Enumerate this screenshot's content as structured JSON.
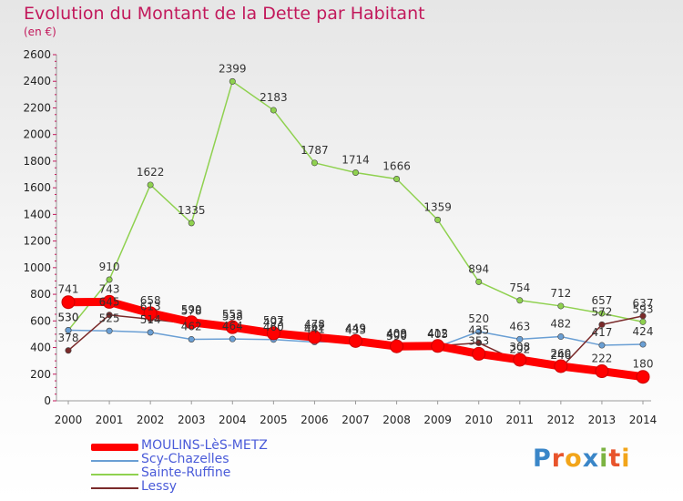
{
  "header": {
    "title": "Evolution du Montant de la Dette par Habitant",
    "unit": "(en €)"
  },
  "logo": {
    "letters": [
      "P",
      "r",
      "o",
      "x",
      "i",
      "t",
      "i"
    ],
    "colors": [
      "#3a86c8",
      "#e8542c",
      "#f2a51a",
      "#3a86c8",
      "#7cb342",
      "#e8542c",
      "#f2a51a"
    ]
  },
  "chart_data": {
    "type": "line",
    "title": "Evolution du Montant de la Dette par Habitant",
    "ylabel": "(en €)",
    "xlabel": "",
    "x": [
      "2000",
      "2001",
      "2002",
      "2003",
      "2004",
      "2005",
      "2006",
      "2007",
      "2008",
      "2009",
      "2010",
      "2011",
      "2012",
      "2013",
      "2014"
    ],
    "ylim": [
      0,
      2600
    ],
    "yticks": [
      0,
      200,
      400,
      600,
      800,
      1000,
      1200,
      1400,
      1600,
      1800,
      2000,
      2200,
      2400,
      2600
    ],
    "grid": false,
    "legend": "bottom-left",
    "series": [
      {
        "name": "MOULINS-LèS-METZ",
        "color": "#ff0000",
        "values": [
          741,
          743,
          658,
          590,
          553,
          507,
          478,
          449,
          409,
          412,
          353,
          308,
          260,
          222,
          180
        ]
      },
      {
        "name": "Scy-Chazelles",
        "color": "#6a9fd4",
        "values": [
          530,
          525,
          514,
          462,
          464,
          460,
          441,
          449,
          400,
          405,
          520,
          463,
          482,
          417,
          424
        ]
      },
      {
        "name": "Sainte-Ruffine",
        "color": "#8fd14f",
        "values": [
          530,
          910,
          1622,
          1335,
          2399,
          2183,
          1787,
          1714,
          1666,
          1359,
          894,
          754,
          712,
          657,
          593
        ]
      },
      {
        "name": "Lessy",
        "color": "#7a2a2a",
        "values": [
          378,
          645,
          613,
          578,
          538,
          493,
          462,
          433,
          390,
          412,
          435,
          292,
          246,
          572,
          637
        ]
      }
    ]
  }
}
